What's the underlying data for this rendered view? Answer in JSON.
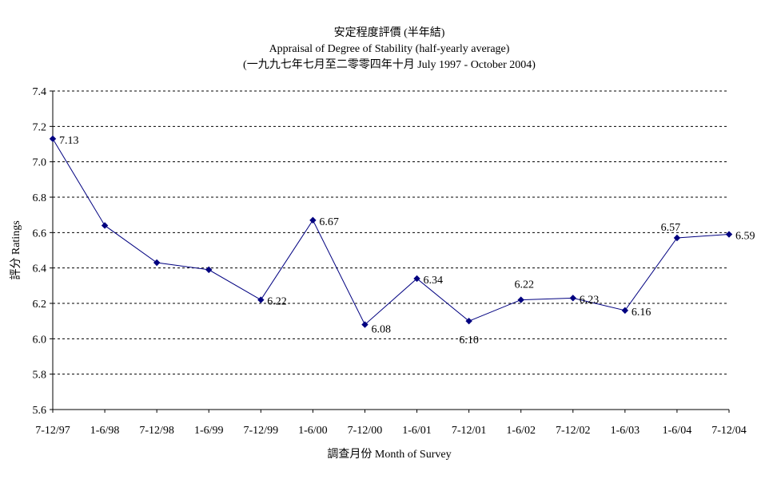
{
  "chart_data": {
    "type": "line",
    "title": "安定程度評價 (半年結)",
    "subtitle": "Appraisal of Degree of Stability (half-yearly average)",
    "subtitle2": "(一九九七年七月至二零零四年十月 July 1997 -  October 2004)",
    "xlabel": "調查月份 Month of Survey",
    "ylabel": "評分 Ratings",
    "ylim": [
      5.6,
      7.4
    ],
    "yticks": [
      "5.6",
      "5.8",
      "6.0",
      "6.2",
      "6.4",
      "6.6",
      "6.8",
      "7.0",
      "7.2",
      "7.4"
    ],
    "categories": [
      "7-12/97",
      "1-6/98",
      "7-12/98",
      "1-6/99",
      "7-12/99",
      "1-6/00",
      "7-12/00",
      "1-6/01",
      "7-12/01",
      "1-6/02",
      "7-12/02",
      "1-6/03",
      "1-6/04",
      "7-12/04"
    ],
    "values": [
      7.13,
      6.64,
      6.43,
      6.39,
      6.22,
      6.67,
      6.08,
      6.34,
      6.1,
      6.22,
      6.23,
      6.16,
      6.57,
      6.59
    ],
    "data_labels": [
      "7.13",
      "",
      "",
      "",
      "6.22",
      "6.67",
      "6.08",
      "6.34",
      "6.10",
      "6.22",
      "6.23",
      "6.16",
      "6.57",
      "6.59"
    ],
    "grid": "horizontal dashed",
    "line_color": "#000080"
  }
}
